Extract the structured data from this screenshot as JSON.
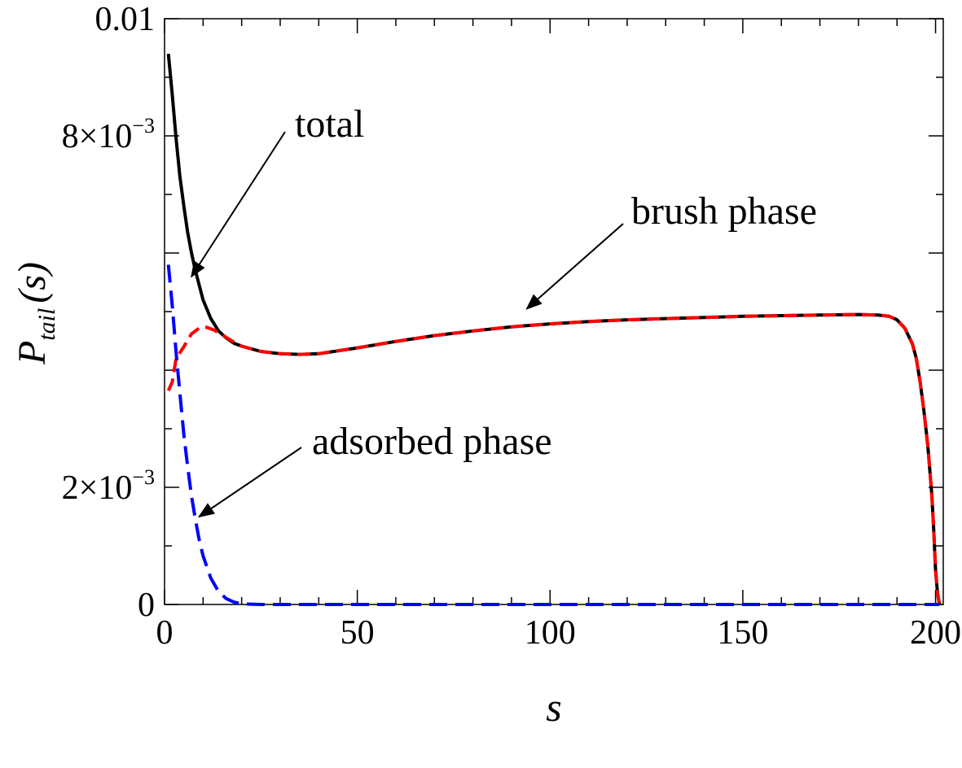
{
  "chart_data": {
    "type": "line",
    "title": "",
    "xlabel": "s",
    "ylabel": {
      "main": "P",
      "sub": "tail",
      "arg": "(s)"
    },
    "xlim": [
      0,
      202
    ],
    "ylim": [
      0,
      0.01
    ],
    "x_ticks": [
      {
        "value": 0,
        "label": "0"
      },
      {
        "value": 50,
        "label": "50"
      },
      {
        "value": 100,
        "label": "100"
      },
      {
        "value": 150,
        "label": "150"
      },
      {
        "value": 200,
        "label": "200"
      }
    ],
    "y_ticks": [
      {
        "value": 0,
        "label": "0"
      },
      {
        "value": 0.002,
        "mant": "2",
        "exp": "−3"
      },
      {
        "value": 0.008,
        "mant": "8",
        "exp": "−3"
      },
      {
        "value": 0.01,
        "label": "0.01"
      }
    ],
    "series": [
      {
        "name": "total",
        "color": "#000000",
        "style": "solid",
        "x": [
          1,
          2,
          3,
          4,
          5,
          6,
          7,
          8,
          10,
          12,
          14,
          16,
          18,
          20,
          25,
          30,
          35,
          40,
          50,
          60,
          70,
          80,
          90,
          100,
          110,
          120,
          130,
          140,
          150,
          160,
          170,
          180,
          185,
          188,
          190,
          192,
          194,
          195,
          196,
          197,
          198,
          199,
          199.5,
          200,
          200.5,
          201
        ],
        "y": [
          0.0094,
          0.0087,
          0.00795,
          0.0073,
          0.0068,
          0.00635,
          0.006,
          0.0057,
          0.0052,
          0.00488,
          0.00467,
          0.00455,
          0.00446,
          0.00441,
          0.00432,
          0.00428,
          0.00427,
          0.00428,
          0.00438,
          0.00449,
          0.00459,
          0.00467,
          0.00474,
          0.00479,
          0.00483,
          0.00486,
          0.00488,
          0.0049,
          0.00492,
          0.00493,
          0.00494,
          0.00495,
          0.00494,
          0.00492,
          0.00486,
          0.00472,
          0.00445,
          0.0042,
          0.0038,
          0.0033,
          0.0027,
          0.0019,
          0.0013,
          0.0006,
          0.0002,
          0.0
        ]
      },
      {
        "name": "brush phase",
        "color": "#ff0000",
        "style": "dashed",
        "x": [
          1,
          2,
          3,
          5,
          7,
          9,
          11,
          13,
          15,
          18,
          20,
          25,
          30,
          35,
          40,
          50,
          60,
          70,
          80,
          90,
          100,
          110,
          120,
          130,
          140,
          150,
          160,
          170,
          180,
          185,
          188,
          190,
          192,
          194,
          195,
          196,
          197,
          198,
          199,
          199.5,
          200,
          200.5,
          201
        ],
        "y": [
          0.00365,
          0.0038,
          0.0042,
          0.0044,
          0.00462,
          0.00472,
          0.00473,
          0.00468,
          0.0046,
          0.00448,
          0.00441,
          0.00432,
          0.00428,
          0.00427,
          0.00428,
          0.00438,
          0.00449,
          0.00459,
          0.00467,
          0.00474,
          0.00479,
          0.00483,
          0.00486,
          0.00488,
          0.0049,
          0.00492,
          0.00493,
          0.00494,
          0.00495,
          0.00494,
          0.00492,
          0.00486,
          0.00472,
          0.00445,
          0.0042,
          0.0038,
          0.0033,
          0.0027,
          0.0019,
          0.0013,
          0.0006,
          0.0002,
          0.0
        ]
      },
      {
        "name": "adsorbed phase",
        "color": "#0000ff",
        "style": "dashed",
        "x": [
          1,
          2,
          3,
          4,
          5,
          6,
          7,
          8,
          9,
          10,
          12,
          14,
          16,
          18,
          20,
          25,
          30,
          50,
          100,
          150,
          200,
          201
        ],
        "y": [
          0.0058,
          0.0051,
          0.0043,
          0.0036,
          0.0029,
          0.00235,
          0.00185,
          0.00145,
          0.0011,
          0.00083,
          0.00045,
          0.00022,
          0.0001,
          4e-05,
          1e-05,
          0.0,
          0.0,
          0.0,
          0.0,
          0.0,
          0.0,
          0.0
        ]
      }
    ],
    "annotations": [
      {
        "text": "total",
        "target": [
          7,
          0.0056
        ]
      },
      {
        "text": "brush phase",
        "target": [
          94,
          0.00505
        ]
      },
      {
        "text": "adsorbed phase",
        "target": [
          9,
          0.0015
        ]
      }
    ]
  }
}
